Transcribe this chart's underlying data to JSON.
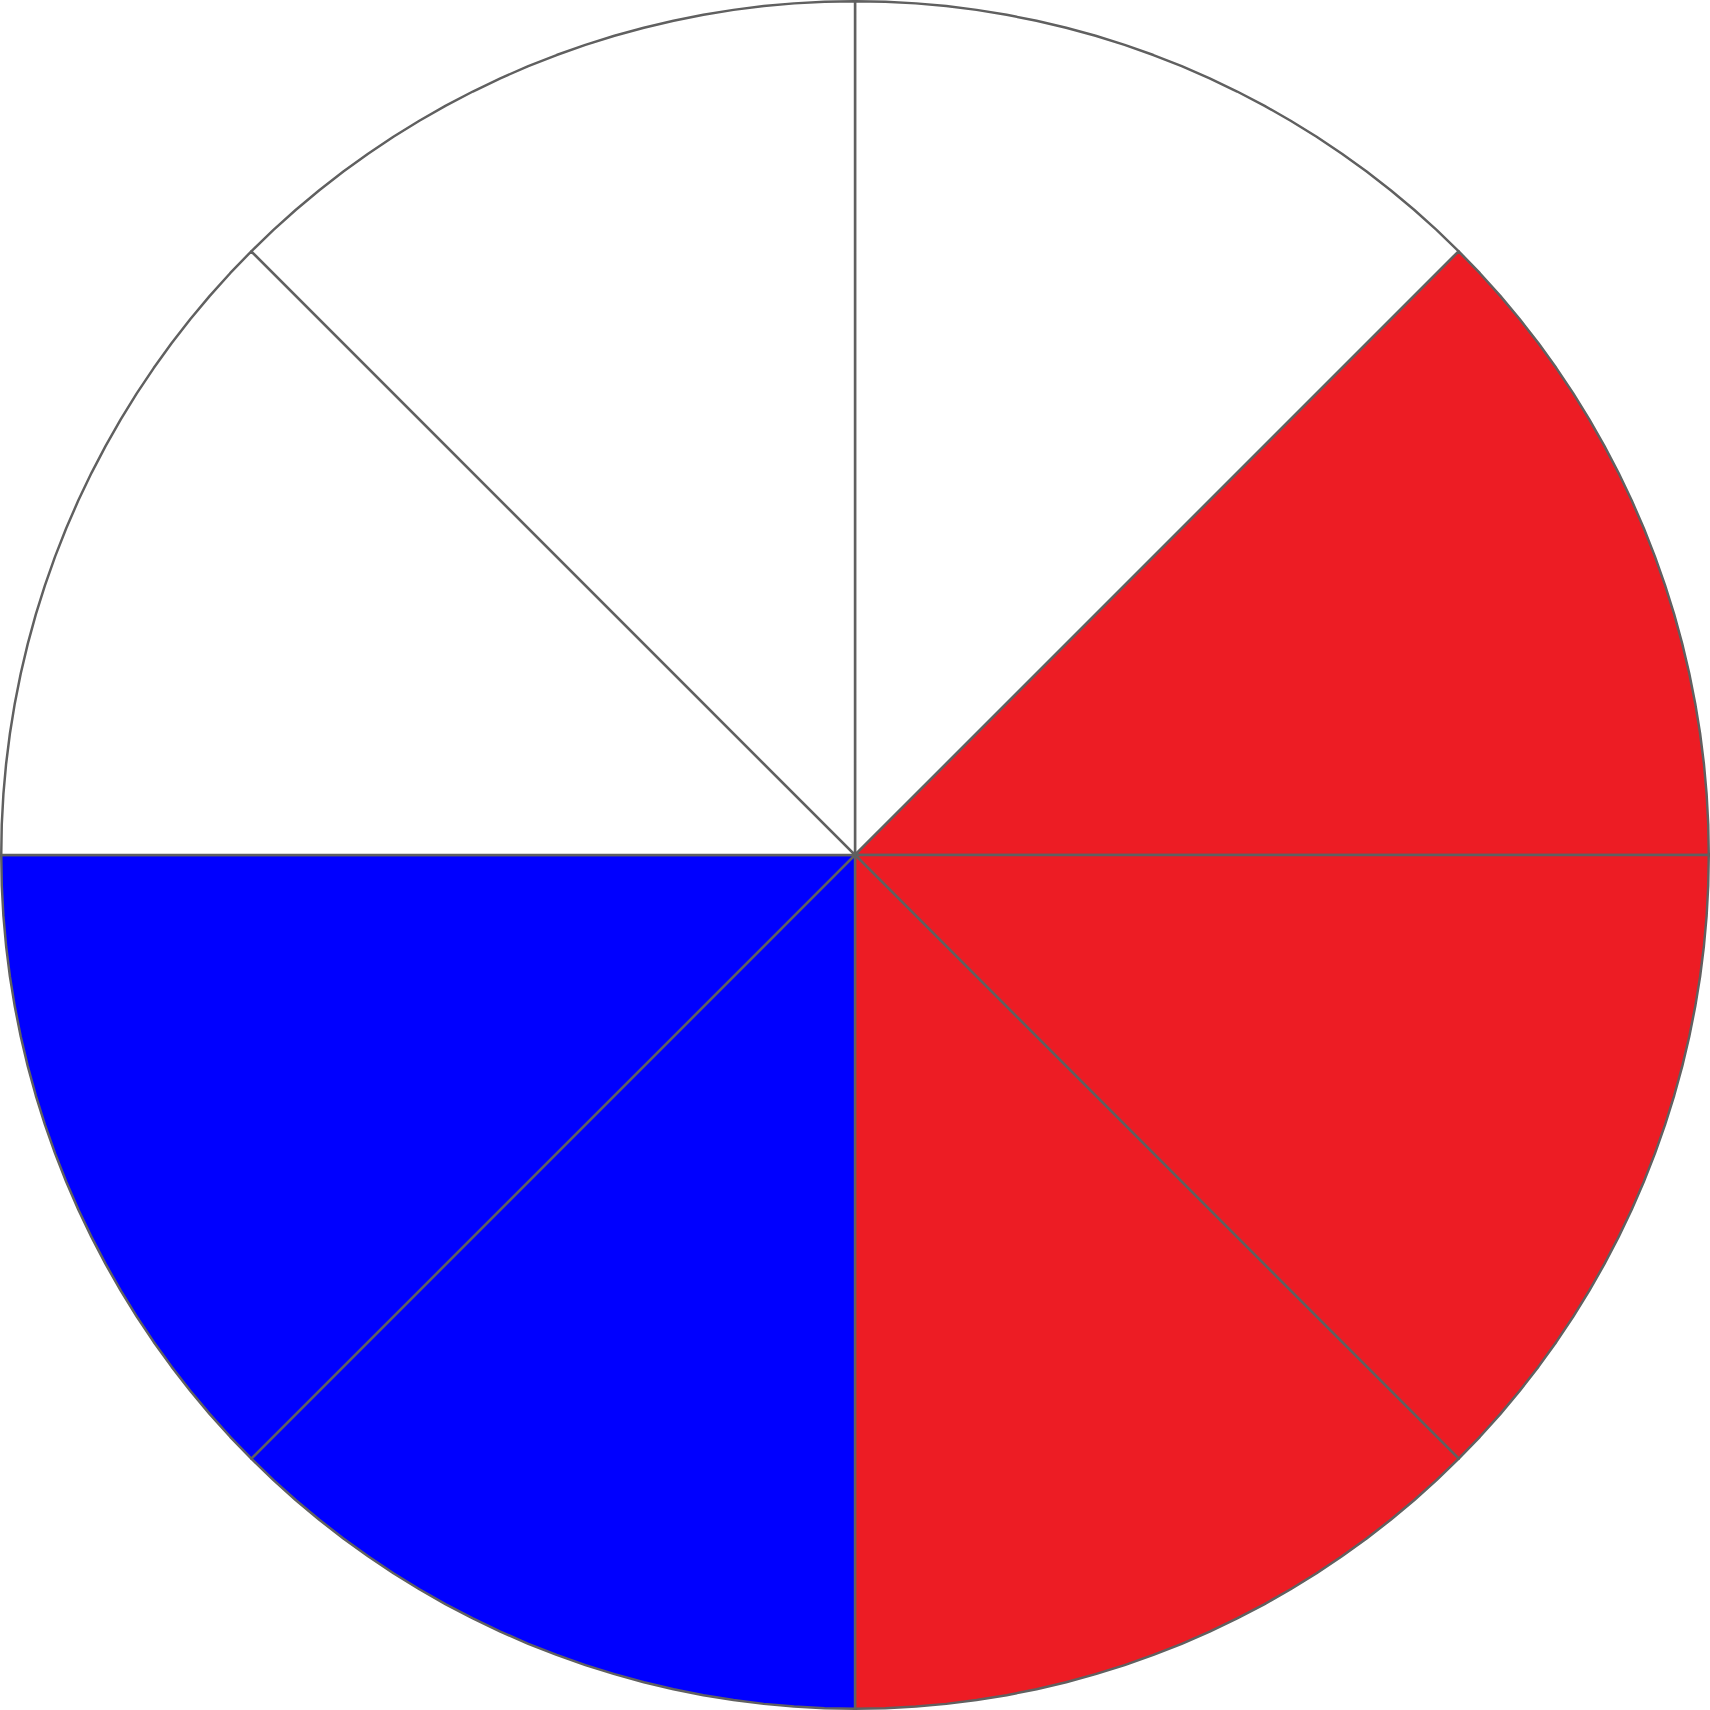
{
  "chart_data": {
    "type": "pie",
    "categories": [
      null,
      null,
      null,
      null,
      null,
      null,
      null,
      null
    ],
    "values": [
      12.5,
      12.5,
      12.5,
      12.5,
      12.5,
      12.5,
      12.5,
      12.5
    ],
    "colors": [
      "#ffffff",
      "#ed1c24",
      "#ed1c24",
      "#ed1c24",
      "#0000ff",
      "#0000ff",
      "#ffffff",
      "#ffffff"
    ]
  }
}
